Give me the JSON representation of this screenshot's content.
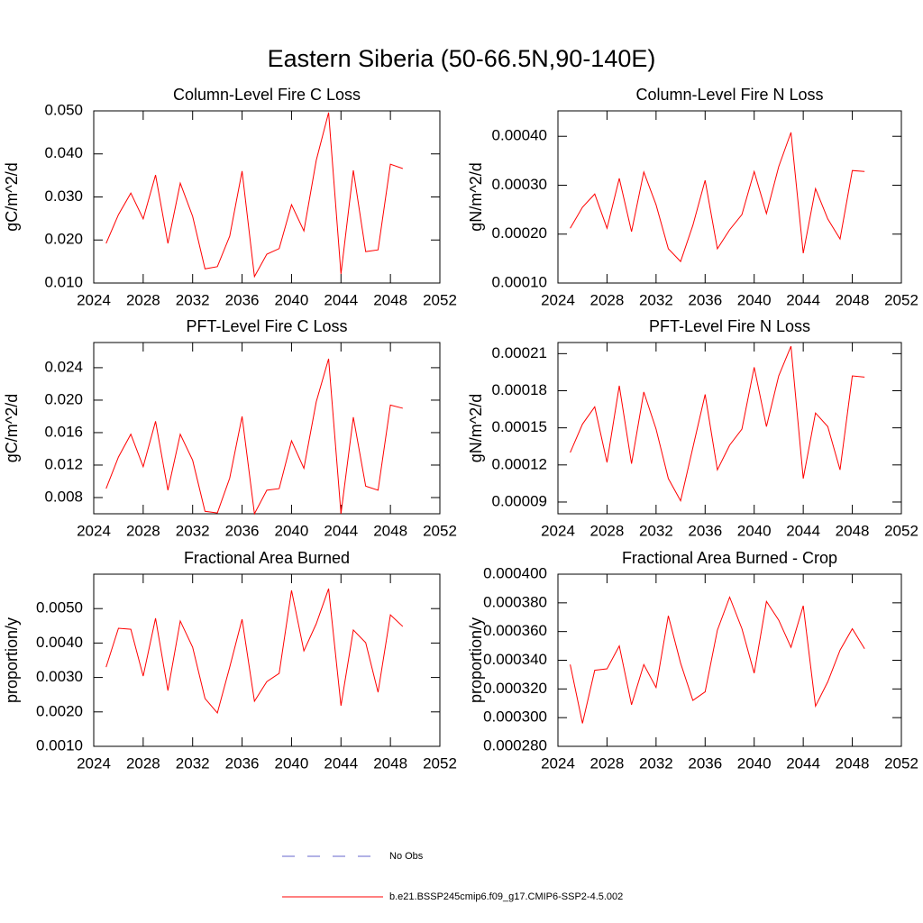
{
  "title": "Eastern Siberia (50-66.5N,90-140E)",
  "legend": [
    {
      "label": "No Obs",
      "color": "#6666cc",
      "style": "dashed"
    },
    {
      "label": "b.e21.BSSP245cmip6.f09_g17.CMIP6-SSP2-4.5.002",
      "color": "#ff0000",
      "style": "solid"
    }
  ],
  "chart_data": [
    {
      "type": "line",
      "title": "Column-Level Fire C Loss",
      "ylabel": "gC/m^2/d",
      "color": "#ff0000",
      "x": [
        2025,
        2026,
        2027,
        2028,
        2029,
        2030,
        2031,
        2032,
        2033,
        2034,
        2035,
        2036,
        2037,
        2038,
        2039,
        2040,
        2041,
        2042,
        2043,
        2044,
        2045,
        2046,
        2047,
        2048,
        2049
      ],
      "values": [
        0.0192,
        0.0259,
        0.0309,
        0.0249,
        0.0351,
        0.0192,
        0.0332,
        0.0255,
        0.0133,
        0.0138,
        0.0209,
        0.036,
        0.0115,
        0.0167,
        0.018,
        0.0282,
        0.0221,
        0.0385,
        0.0496,
        0.0121,
        0.0362,
        0.0173,
        0.0177,
        0.0376,
        0.0366
      ],
      "xlim": [
        2024,
        2052
      ],
      "xticks": [
        2024,
        2028,
        2032,
        2036,
        2040,
        2044,
        2048,
        2052
      ],
      "ylim": [
        0.01,
        0.05
      ],
      "yticks": [
        {
          "value": 0.01,
          "label": "0.010"
        },
        {
          "value": 0.02,
          "label": "0.020"
        },
        {
          "value": 0.03,
          "label": "0.030"
        },
        {
          "value": 0.04,
          "label": "0.040"
        },
        {
          "value": 0.05,
          "label": "0.050"
        }
      ]
    },
    {
      "type": "line",
      "title": "Column-Level Fire N Loss",
      "ylabel": "gN/m^2/d",
      "color": "#ff0000",
      "x": [
        2025,
        2026,
        2027,
        2028,
        2029,
        2030,
        2031,
        2032,
        2033,
        2034,
        2035,
        2036,
        2037,
        2038,
        2039,
        2040,
        2041,
        2042,
        2043,
        2044,
        2045,
        2046,
        2047,
        2048,
        2049
      ],
      "values": [
        0.000212,
        0.000255,
        0.000282,
        0.000212,
        0.000314,
        0.000205,
        0.000327,
        0.00026,
        0.00017,
        0.000144,
        0.000218,
        0.00031,
        0.00017,
        0.000209,
        0.00024,
        0.000328,
        0.000242,
        0.000338,
        0.000408,
        0.000161,
        0.000293,
        0.000231,
        0.00019,
        0.00033,
        0.000328
      ],
      "xlim": [
        2024,
        2052
      ],
      "xticks": [
        2024,
        2028,
        2032,
        2036,
        2040,
        2044,
        2048,
        2052
      ],
      "ylim": [
        0.0001,
        0.000452
      ],
      "yticks": [
        {
          "value": 0.0001,
          "label": "0.00010"
        },
        {
          "value": 0.0002,
          "label": "0.00020"
        },
        {
          "value": 0.0003,
          "label": "0.00030"
        },
        {
          "value": 0.0004,
          "label": "0.00040"
        }
      ]
    },
    {
      "type": "line",
      "title": "PFT-Level Fire C Loss",
      "ylabel": "gC/m^2/d",
      "color": "#ff0000",
      "x": [
        2025,
        2026,
        2027,
        2028,
        2029,
        2030,
        2031,
        2032,
        2033,
        2034,
        2035,
        2036,
        2037,
        2038,
        2039,
        2040,
        2041,
        2042,
        2043,
        2044,
        2045,
        2046,
        2047,
        2048,
        2049
      ],
      "values": [
        0.0091,
        0.013,
        0.0158,
        0.0118,
        0.0174,
        0.0089,
        0.0158,
        0.0126,
        0.0063,
        0.0061,
        0.0104,
        0.018,
        0.006,
        0.0089,
        0.0091,
        0.015,
        0.0116,
        0.0198,
        0.0251,
        0.006,
        0.0179,
        0.0094,
        0.0089,
        0.0194,
        0.019
      ],
      "xlim": [
        2024,
        2052
      ],
      "xticks": [
        2024,
        2028,
        2032,
        2036,
        2040,
        2044,
        2048,
        2052
      ],
      "ylim": [
        0.006,
        0.0271
      ],
      "yticks": [
        0.008,
        0.012,
        0.016,
        {
          "value": 0.02,
          "label": "0.020"
        },
        0.024
      ]
    },
    {
      "type": "line",
      "title": "PFT-Level Fire N Loss",
      "ylabel": "gN/m^2/d",
      "color": "#ff0000",
      "x": [
        2025,
        2026,
        2027,
        2028,
        2029,
        2030,
        2031,
        2032,
        2033,
        2034,
        2035,
        2036,
        2037,
        2038,
        2039,
        2040,
        2041,
        2042,
        2043,
        2044,
        2045,
        2046,
        2047,
        2048,
        2049
      ],
      "values": [
        0.00013,
        0.000153,
        0.000167,
        0.000122,
        0.000184,
        0.000121,
        0.000179,
        0.000149,
        0.000109,
        9.1e-05,
        0.000134,
        0.000177,
        0.000116,
        0.000136,
        0.000149,
        0.000199,
        0.000151,
        0.000192,
        0.000216,
        0.000109,
        0.000162,
        0.000151,
        0.000116,
        0.000192,
        0.000191
      ],
      "xlim": [
        2024,
        2052
      ],
      "xticks": [
        2024,
        2028,
        2032,
        2036,
        2040,
        2044,
        2048,
        2052
      ],
      "ylim": [
        8.05e-05,
        0.000219
      ],
      "yticks": [
        {
          "value": 9e-05,
          "label": "0.00009"
        },
        {
          "value": 0.00012,
          "label": "0.00012"
        },
        {
          "value": 0.00015,
          "label": "0.00015"
        },
        {
          "value": 0.00018,
          "label": "0.00018"
        },
        {
          "value": 0.00021,
          "label": "0.00021"
        }
      ]
    },
    {
      "type": "line",
      "title": "Fractional Area Burned",
      "ylabel": "proportion/y",
      "color": "#ff0000",
      "x": [
        2025,
        2026,
        2027,
        2028,
        2029,
        2030,
        2031,
        2032,
        2033,
        2034,
        2035,
        2036,
        2037,
        2038,
        2039,
        2040,
        2041,
        2042,
        2043,
        2044,
        2045,
        2046,
        2047,
        2048,
        2049
      ],
      "values": [
        0.0033,
        0.00443,
        0.0044,
        0.00304,
        0.00472,
        0.00262,
        0.00464,
        0.00388,
        0.00239,
        0.00197,
        0.0033,
        0.00469,
        0.00231,
        0.00288,
        0.00312,
        0.00553,
        0.00377,
        0.00456,
        0.00558,
        0.00218,
        0.00438,
        0.00401,
        0.00257,
        0.00482,
        0.00448
      ],
      "xlim": [
        2024,
        2052
      ],
      "xticks": [
        2024,
        2028,
        2032,
        2036,
        2040,
        2044,
        2048,
        2052
      ],
      "ylim": [
        0.001,
        0.006
      ],
      "yticks": [
        {
          "value": 0.001,
          "label": "0.0010"
        },
        {
          "value": 0.002,
          "label": "0.0020"
        },
        {
          "value": 0.003,
          "label": "0.0030"
        },
        {
          "value": 0.004,
          "label": "0.0040"
        },
        {
          "value": 0.005,
          "label": "0.0050"
        }
      ]
    },
    {
      "type": "line",
      "title": "Fractional Area Burned - Crop",
      "ylabel": "proportion/y",
      "color": "#ff0000",
      "x": [
        2025,
        2026,
        2027,
        2028,
        2029,
        2030,
        2031,
        2032,
        2033,
        2034,
        2035,
        2036,
        2037,
        2038,
        2039,
        2040,
        2041,
        2042,
        2043,
        2044,
        2045,
        2046,
        2047,
        2048,
        2049
      ],
      "values": [
        0.000337,
        0.000296,
        0.000333,
        0.000334,
        0.00035,
        0.000309,
        0.000337,
        0.000321,
        0.000371,
        0.000338,
        0.000312,
        0.000318,
        0.000361,
        0.000384,
        0.000362,
        0.000331,
        0.000381,
        0.000368,
        0.000349,
        0.000378,
        0.000308,
        0.000325,
        0.000347,
        0.000362,
        0.000348
      ],
      "xlim": [
        2024,
        2052
      ],
      "xticks": [
        2024,
        2028,
        2032,
        2036,
        2040,
        2044,
        2048,
        2052
      ],
      "ylim": [
        0.00028,
        0.0004
      ],
      "yticks": [
        {
          "value": 0.00028,
          "label": "0.000280"
        },
        {
          "value": 0.0003,
          "label": "0.000300"
        },
        {
          "value": 0.00032,
          "label": "0.000320"
        },
        {
          "value": 0.00034,
          "label": "0.000340"
        },
        {
          "value": 0.00036,
          "label": "0.000360"
        },
        {
          "value": 0.00038,
          "label": "0.000380"
        },
        {
          "value": 0.0004,
          "label": "0.000400"
        }
      ]
    }
  ]
}
